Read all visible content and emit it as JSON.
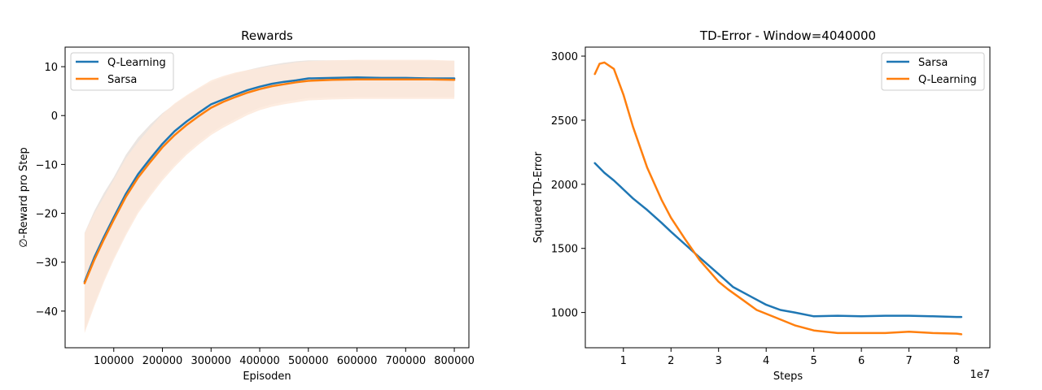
{
  "chart_data": [
    {
      "type": "line",
      "title": "Rewards",
      "xlabel": "Episoden",
      "ylabel": "∅-Reward pro Step",
      "xlim": [
        0,
        830000
      ],
      "ylim": [
        -47.5,
        14
      ],
      "xticks": [
        100000,
        200000,
        300000,
        400000,
        500000,
        600000,
        700000,
        800000
      ],
      "xtick_labels": [
        "100000",
        "200000",
        "300000",
        "400000",
        "500000",
        "600000",
        "700000",
        "800000"
      ],
      "yticks": [
        10,
        0,
        -10,
        -20,
        -30,
        -40
      ],
      "ytick_labels": [
        "10",
        "0",
        "−10",
        "−20",
        "−30",
        "−40"
      ],
      "legend_position": "top-left",
      "grid": false,
      "series": [
        {
          "name": "Q-Learning",
          "color": "#1f77b4",
          "band_color": "#e7e1dc",
          "x": [
            40000,
            60000,
            80000,
            100000,
            125000,
            150000,
            175000,
            200000,
            225000,
            250000,
            275000,
            300000,
            325000,
            350000,
            375000,
            400000,
            425000,
            450000,
            475000,
            500000,
            550000,
            600000,
            650000,
            700000,
            750000,
            800000
          ],
          "y": [
            -34,
            -29,
            -24.8,
            -20.8,
            -16,
            -12,
            -8.8,
            -5.8,
            -3.2,
            -1.2,
            0.6,
            2.3,
            3.3,
            4.3,
            5.2,
            5.9,
            6.5,
            6.9,
            7.2,
            7.6,
            7.7,
            7.8,
            7.7,
            7.7,
            7.6,
            7.6
          ],
          "lower": [
            -44,
            -38.5,
            -33.5,
            -29,
            -24,
            -19.5,
            -16,
            -12.8,
            -10,
            -7.5,
            -5.4,
            -3.5,
            -2,
            -0.7,
            0.6,
            1.6,
            2.3,
            2.8,
            3.2,
            3.6,
            3.7,
            3.8,
            3.8,
            3.8,
            3.8,
            3.8
          ],
          "upper": [
            -24,
            -19.5,
            -15.8,
            -12.6,
            -8,
            -4.5,
            -1.8,
            0.5,
            2.3,
            4,
            5.5,
            6.8,
            7.8,
            8.6,
            9.3,
            9.9,
            10.4,
            10.8,
            11.1,
            11.3,
            11.3,
            11.3,
            11.2,
            11.2,
            11.2,
            11.2
          ]
        },
        {
          "name": "Sarsa",
          "color": "#ff7f0e",
          "band_color": "#fde9da",
          "x": [
            40000,
            60000,
            80000,
            100000,
            125000,
            150000,
            175000,
            200000,
            225000,
            250000,
            275000,
            300000,
            325000,
            350000,
            375000,
            400000,
            425000,
            450000,
            475000,
            500000,
            550000,
            600000,
            650000,
            700000,
            750000,
            800000
          ],
          "y": [
            -34.3,
            -29.5,
            -25.3,
            -21.3,
            -16.6,
            -12.7,
            -9.5,
            -6.5,
            -4,
            -1.9,
            -0.1,
            1.6,
            2.8,
            3.8,
            4.7,
            5.4,
            6,
            6.4,
            6.8,
            7.1,
            7.3,
            7.4,
            7.4,
            7.4,
            7.4,
            7.3
          ],
          "lower": [
            -44.5,
            -39,
            -34,
            -29.5,
            -24.5,
            -20,
            -16.5,
            -13.3,
            -10.5,
            -8,
            -5.9,
            -4,
            -2.5,
            -1.2,
            0.1,
            1.1,
            1.8,
            2.3,
            2.7,
            3.1,
            3.3,
            3.4,
            3.4,
            3.4,
            3.4,
            3.4
          ],
          "upper": [
            -24.1,
            -20,
            -16.6,
            -13.1,
            -8.7,
            -5.4,
            -2.5,
            0.3,
            2.5,
            4.2,
            5.7,
            7.2,
            8.1,
            8.8,
            9.3,
            9.7,
            10.2,
            10.5,
            10.9,
            11.1,
            11.3,
            11.4,
            11.4,
            11.4,
            11.4,
            11.2
          ]
        }
      ]
    },
    {
      "type": "line",
      "title": "TD-Error - Window=4040000",
      "xlabel": "Steps",
      "ylabel": "Squared TD-Error",
      "x_offset_label": "1e7",
      "xlim": [
        0.2,
        8.7
      ],
      "ylim": [
        725,
        3070
      ],
      "xticks": [
        1,
        2,
        3,
        4,
        5,
        6,
        7,
        8
      ],
      "xtick_labels": [
        "1",
        "2",
        "3",
        "4",
        "5",
        "6",
        "7",
        "8"
      ],
      "yticks": [
        3000,
        2500,
        2000,
        1500,
        1000
      ],
      "ytick_labels": [
        "3000",
        "2500",
        "2000",
        "1500",
        "1000"
      ],
      "legend_position": "top-right",
      "grid": false,
      "series": [
        {
          "name": "Sarsa",
          "color": "#1f77b4",
          "x": [
            0.4,
            0.6,
            0.8,
            1,
            1.2,
            1.5,
            1.8,
            2,
            2.3,
            2.6,
            3,
            3.3,
            3.7,
            4,
            4.3,
            4.6,
            5,
            5.5,
            6,
            6.5,
            7,
            7.5,
            8,
            8.1
          ],
          "y": [
            2165,
            2090,
            2030,
            1960,
            1890,
            1800,
            1700,
            1630,
            1530,
            1430,
            1300,
            1200,
            1120,
            1060,
            1020,
            1000,
            970,
            975,
            970,
            975,
            975,
            970,
            965,
            965
          ]
        },
        {
          "name": "Q-Learning",
          "color": "#ff7f0e",
          "x": [
            0.4,
            0.5,
            0.6,
            0.8,
            1,
            1.2,
            1.5,
            1.8,
            2,
            2.3,
            2.6,
            3,
            3.2,
            3.5,
            3.8,
            4.2,
            4.6,
            5,
            5.5,
            6,
            6.5,
            7,
            7.5,
            8,
            8.1
          ],
          "y": [
            2860,
            2940,
            2950,
            2900,
            2700,
            2450,
            2130,
            1880,
            1740,
            1570,
            1410,
            1240,
            1180,
            1100,
            1020,
            960,
            900,
            860,
            840,
            840,
            840,
            850,
            840,
            835,
            830
          ]
        }
      ]
    }
  ]
}
